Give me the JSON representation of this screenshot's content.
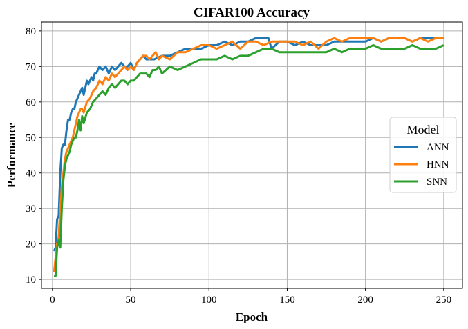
{
  "chart_data": {
    "type": "line",
    "title": "CIFAR100 Accuracy",
    "xlabel": "Epoch",
    "ylabel": "Performance",
    "xlim": [
      -7,
      262
    ],
    "ylim": [
      7.5,
      82.5
    ],
    "xticks": [
      0,
      50,
      100,
      150,
      200,
      250
    ],
    "yticks": [
      10,
      20,
      30,
      40,
      50,
      60,
      70,
      80
    ],
    "grid": true,
    "legend": {
      "title": "Model",
      "placement": "center-right"
    },
    "series": [
      {
        "name": "ANN",
        "color": "#1f77b4",
        "points": [
          [
            1,
            18
          ],
          [
            2,
            19
          ],
          [
            3,
            27
          ],
          [
            4,
            28
          ],
          [
            5,
            40
          ],
          [
            6,
            47
          ],
          [
            7,
            48
          ],
          [
            8,
            48
          ],
          [
            9,
            52
          ],
          [
            10,
            55
          ],
          [
            11,
            55
          ],
          [
            12,
            57
          ],
          [
            13,
            58
          ],
          [
            14,
            58
          ],
          [
            15,
            60
          ],
          [
            16,
            61
          ],
          [
            17,
            62
          ],
          [
            18,
            63
          ],
          [
            19,
            64
          ],
          [
            20,
            62
          ],
          [
            21,
            64
          ],
          [
            22,
            66
          ],
          [
            23,
            65
          ],
          [
            24,
            66
          ],
          [
            25,
            67
          ],
          [
            26,
            66
          ],
          [
            27,
            68
          ],
          [
            28,
            68
          ],
          [
            29,
            69
          ],
          [
            30,
            70
          ],
          [
            32,
            69
          ],
          [
            34,
            70
          ],
          [
            36,
            68
          ],
          [
            38,
            70
          ],
          [
            40,
            69
          ],
          [
            42,
            70
          ],
          [
            44,
            71
          ],
          [
            46,
            70
          ],
          [
            48,
            70
          ],
          [
            50,
            71
          ],
          [
            52,
            69
          ],
          [
            54,
            71
          ],
          [
            56,
            72
          ],
          [
            58,
            73
          ],
          [
            60,
            72
          ],
          [
            65,
            72
          ],
          [
            70,
            73
          ],
          [
            75,
            73
          ],
          [
            80,
            74
          ],
          [
            85,
            75
          ],
          [
            90,
            75
          ],
          [
            95,
            75
          ],
          [
            100,
            76
          ],
          [
            105,
            76
          ],
          [
            110,
            77
          ],
          [
            115,
            76
          ],
          [
            120,
            77
          ],
          [
            125,
            77
          ],
          [
            130,
            78
          ],
          [
            135,
            78
          ],
          [
            138,
            78
          ],
          [
            140,
            75
          ],
          [
            145,
            77
          ],
          [
            150,
            77
          ],
          [
            155,
            76
          ],
          [
            160,
            77
          ],
          [
            165,
            76
          ],
          [
            170,
            76
          ],
          [
            175,
            76
          ],
          [
            180,
            77
          ],
          [
            185,
            77
          ],
          [
            190,
            77
          ],
          [
            195,
            77
          ],
          [
            200,
            77
          ],
          [
            205,
            78
          ],
          [
            210,
            77
          ],
          [
            215,
            78
          ],
          [
            220,
            78
          ],
          [
            225,
            78
          ],
          [
            230,
            77
          ],
          [
            235,
            78
          ],
          [
            240,
            78
          ],
          [
            245,
            78
          ],
          [
            250,
            78
          ]
        ]
      },
      {
        "name": "HNN",
        "color": "#ff7f0e",
        "points": [
          [
            1,
            12
          ],
          [
            2,
            16
          ],
          [
            3,
            20
          ],
          [
            4,
            22
          ],
          [
            5,
            30
          ],
          [
            6,
            36
          ],
          [
            7,
            40
          ],
          [
            8,
            44
          ],
          [
            9,
            46
          ],
          [
            10,
            47
          ],
          [
            11,
            48
          ],
          [
            12,
            49
          ],
          [
            13,
            50
          ],
          [
            14,
            52
          ],
          [
            15,
            54
          ],
          [
            16,
            56
          ],
          [
            17,
            57
          ],
          [
            18,
            58
          ],
          [
            19,
            58
          ],
          [
            20,
            57
          ],
          [
            22,
            60
          ],
          [
            24,
            61
          ],
          [
            26,
            63
          ],
          [
            28,
            64
          ],
          [
            30,
            66
          ],
          [
            32,
            65
          ],
          [
            34,
            67
          ],
          [
            36,
            66
          ],
          [
            38,
            68
          ],
          [
            40,
            67
          ],
          [
            42,
            68
          ],
          [
            44,
            69
          ],
          [
            46,
            70
          ],
          [
            48,
            69
          ],
          [
            50,
            70
          ],
          [
            52,
            69
          ],
          [
            54,
            71
          ],
          [
            56,
            72
          ],
          [
            58,
            73
          ],
          [
            60,
            73
          ],
          [
            62,
            72
          ],
          [
            64,
            73
          ],
          [
            66,
            74
          ],
          [
            68,
            72
          ],
          [
            70,
            73
          ],
          [
            75,
            72
          ],
          [
            80,
            74
          ],
          [
            85,
            74
          ],
          [
            90,
            75
          ],
          [
            95,
            76
          ],
          [
            100,
            76
          ],
          [
            105,
            75
          ],
          [
            110,
            76
          ],
          [
            115,
            77
          ],
          [
            120,
            75
          ],
          [
            125,
            77
          ],
          [
            130,
            77
          ],
          [
            135,
            76
          ],
          [
            140,
            77
          ],
          [
            145,
            77
          ],
          [
            150,
            77
          ],
          [
            155,
            77
          ],
          [
            160,
            76
          ],
          [
            165,
            77
          ],
          [
            170,
            75
          ],
          [
            175,
            77
          ],
          [
            180,
            78
          ],
          [
            185,
            77
          ],
          [
            190,
            78
          ],
          [
            195,
            78
          ],
          [
            200,
            78
          ],
          [
            205,
            78
          ],
          [
            210,
            77
          ],
          [
            215,
            78
          ],
          [
            220,
            78
          ],
          [
            225,
            78
          ],
          [
            230,
            77
          ],
          [
            235,
            78
          ],
          [
            240,
            77
          ],
          [
            245,
            78
          ],
          [
            250,
            78
          ]
        ]
      },
      {
        "name": "SNN",
        "color": "#2ca02c",
        "points": [
          [
            1,
            11
          ],
          [
            2,
            11
          ],
          [
            3,
            19
          ],
          [
            4,
            21
          ],
          [
            5,
            19
          ],
          [
            6,
            30
          ],
          [
            7,
            38
          ],
          [
            8,
            42
          ],
          [
            9,
            44
          ],
          [
            10,
            45
          ],
          [
            11,
            46
          ],
          [
            12,
            48
          ],
          [
            13,
            49
          ],
          [
            14,
            50
          ],
          [
            15,
            50
          ],
          [
            16,
            52
          ],
          [
            17,
            55
          ],
          [
            18,
            52
          ],
          [
            19,
            56
          ],
          [
            20,
            54
          ],
          [
            22,
            57
          ],
          [
            24,
            58
          ],
          [
            26,
            60
          ],
          [
            28,
            61
          ],
          [
            30,
            62
          ],
          [
            32,
            63
          ],
          [
            34,
            62
          ],
          [
            36,
            64
          ],
          [
            38,
            65
          ],
          [
            40,
            64
          ],
          [
            42,
            65
          ],
          [
            44,
            66
          ],
          [
            46,
            66
          ],
          [
            48,
            65
          ],
          [
            50,
            66
          ],
          [
            52,
            66
          ],
          [
            54,
            67
          ],
          [
            56,
            68
          ],
          [
            58,
            68
          ],
          [
            60,
            68
          ],
          [
            62,
            67
          ],
          [
            64,
            69
          ],
          [
            66,
            69
          ],
          [
            68,
            70
          ],
          [
            70,
            68
          ],
          [
            75,
            70
          ],
          [
            80,
            69
          ],
          [
            85,
            70
          ],
          [
            90,
            71
          ],
          [
            95,
            72
          ],
          [
            100,
            72
          ],
          [
            105,
            72
          ],
          [
            110,
            73
          ],
          [
            115,
            72
          ],
          [
            120,
            73
          ],
          [
            125,
            73
          ],
          [
            130,
            74
          ],
          [
            135,
            75
          ],
          [
            140,
            75
          ],
          [
            145,
            74
          ],
          [
            150,
            74
          ],
          [
            155,
            74
          ],
          [
            160,
            74
          ],
          [
            165,
            74
          ],
          [
            170,
            74
          ],
          [
            175,
            74
          ],
          [
            180,
            75
          ],
          [
            185,
            74
          ],
          [
            190,
            75
          ],
          [
            195,
            75
          ],
          [
            200,
            75
          ],
          [
            205,
            76
          ],
          [
            210,
            75
          ],
          [
            215,
            75
          ],
          [
            220,
            75
          ],
          [
            225,
            75
          ],
          [
            230,
            76
          ],
          [
            235,
            75
          ],
          [
            240,
            75
          ],
          [
            245,
            75
          ],
          [
            250,
            76
          ]
        ]
      }
    ]
  }
}
